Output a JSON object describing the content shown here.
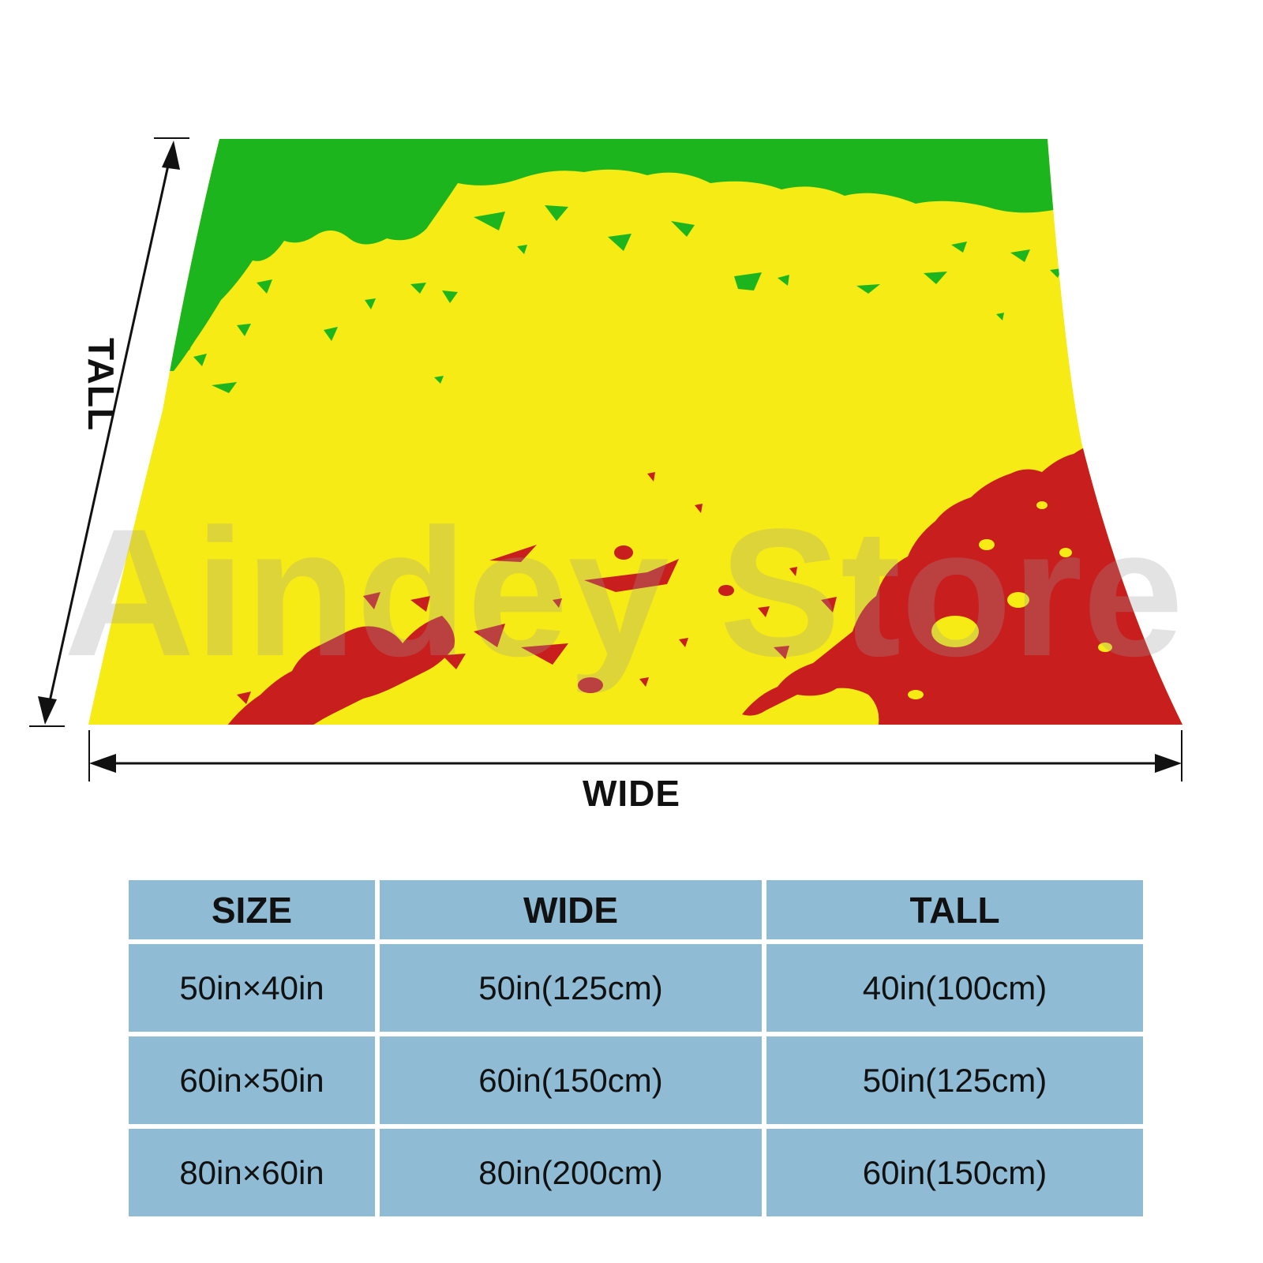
{
  "diagram": {
    "wide_label": "WIDE",
    "tall_label": "TALL",
    "watermark": "Aindey Store",
    "colors": {
      "green": "#1db51d",
      "yellow": "#f6eb14",
      "red": "#c81e1e",
      "arrow": "#111111",
      "table_cell": "#8fbcd4"
    }
  },
  "size_table": {
    "headers": [
      "SIZE",
      "WIDE",
      "TALL"
    ],
    "rows": [
      [
        "50in×40in",
        "50in(125cm)",
        "40in(100cm)"
      ],
      [
        "60in×50in",
        "60in(150cm)",
        "50in(125cm)"
      ],
      [
        "80in×60in",
        "80in(200cm)",
        "60in(150cm)"
      ]
    ]
  }
}
